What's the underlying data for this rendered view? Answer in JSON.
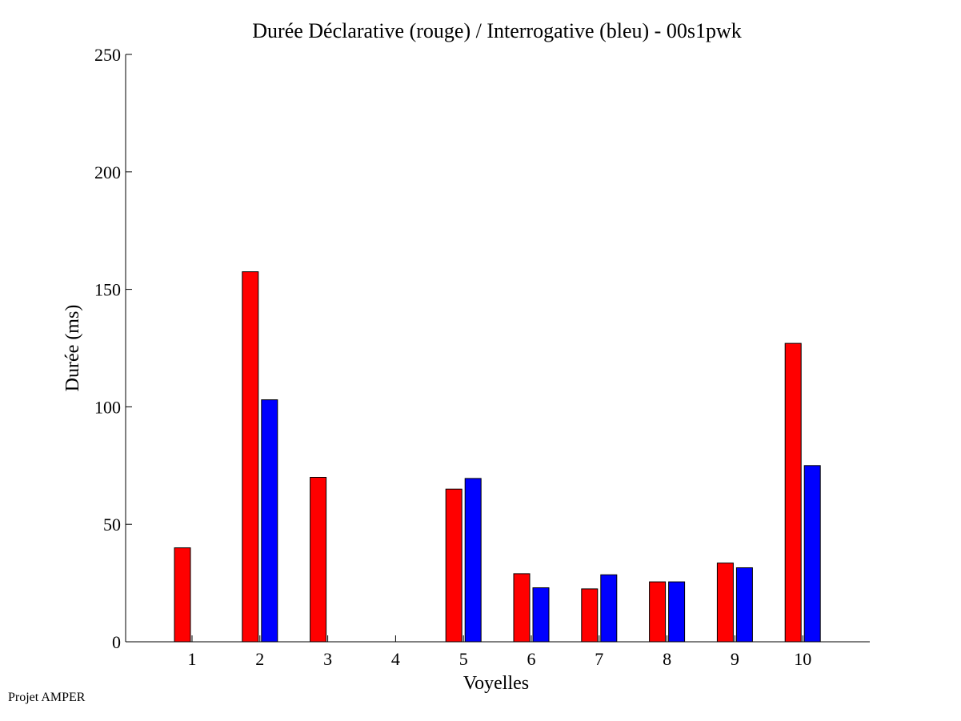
{
  "chart_data": {
    "type": "bar",
    "title": "Durée Déclarative (rouge) / Interrogative (bleu) - 00s1pwk",
    "xlabel": "Voyelles",
    "ylabel": "Durée (ms)",
    "categories": [
      "1",
      "2",
      "3",
      "4",
      "5",
      "6",
      "7",
      "8",
      "9",
      "10"
    ],
    "ylim": [
      0,
      250
    ],
    "yticks": [
      "0",
      "50",
      "100",
      "150",
      "200",
      "250"
    ],
    "grid": false,
    "series": [
      {
        "color": "#ff0000",
        "values": [
          40,
          157.5,
          70,
          0,
          65,
          29,
          22.5,
          25.5,
          33.5,
          127
        ]
      },
      {
        "color": "#0000ff",
        "values": [
          0,
          103,
          0,
          0,
          69.5,
          23,
          28.5,
          25.5,
          31.5,
          75
        ]
      }
    ]
  },
  "footer": {
    "note": "Projet AMPER"
  }
}
